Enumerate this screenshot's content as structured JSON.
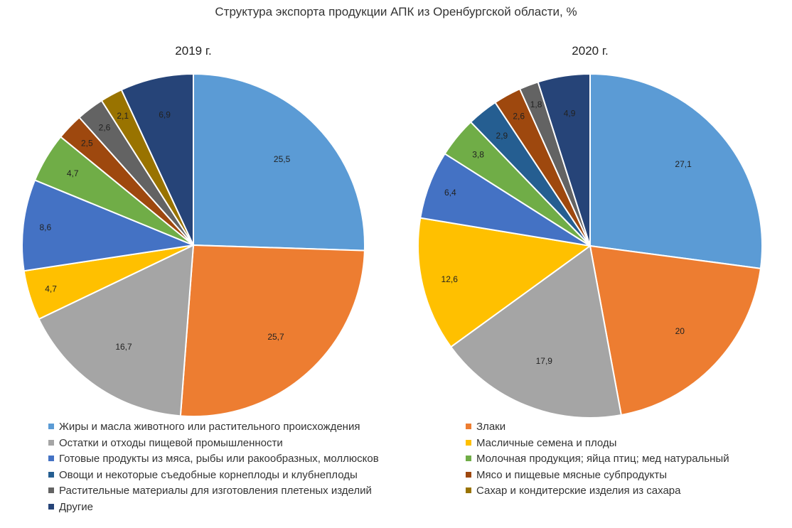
{
  "chart_data": {
    "type": "pie",
    "title": "Структура экспорта продукции АПК из Оренбургской области, %",
    "categories": [
      "Жиры и масла животного или растительного происхождения",
      "Злаки",
      "Остатки и отходы пищевой промышленности",
      "Масличные семена и плоды",
      "Готовые продукты из мяса, рыбы или ракообразных, моллюсков",
      "Молочная продукция; яйца птиц; мед натуральный",
      "Овощи и некоторые съедобные корнеплоды и клубнеплоды",
      "Мясо и пищевые мясные субпродукты",
      "Растительные материалы для изготовления плетеных изделий",
      "Сахар и кондитерские изделия из сахара",
      "Другие"
    ],
    "colors": [
      "#5B9BD5",
      "#ED7D31",
      "#A5A5A5",
      "#FFC000",
      "#4472C4",
      "#70AD47",
      "#255E91",
      "#9E480E",
      "#636363",
      "#997300",
      "#264478"
    ],
    "legend_position": "bottom",
    "series": [
      {
        "name": "2019 г.",
        "values": [
          25.5,
          25.7,
          16.7,
          4.7,
          8.6,
          4.7,
          0,
          2.5,
          2.6,
          2.1,
          6.9
        ],
        "labels": [
          "25,5",
          "25,7",
          "16,7",
          "4,7",
          "8,6",
          "4,7",
          "",
          "2,5",
          "2,6",
          "2,1",
          "6,9"
        ]
      },
      {
        "name": "2020 г.",
        "values": [
          27.1,
          20,
          17.9,
          12.6,
          6.4,
          3.8,
          2.9,
          2.6,
          1.8,
          0,
          4.9
        ],
        "labels": [
          "27,1",
          "20",
          "17,9",
          "12,6",
          "6,4",
          "3,8",
          "2,9",
          "2,6",
          "1,8",
          "",
          "4,9"
        ]
      }
    ]
  }
}
